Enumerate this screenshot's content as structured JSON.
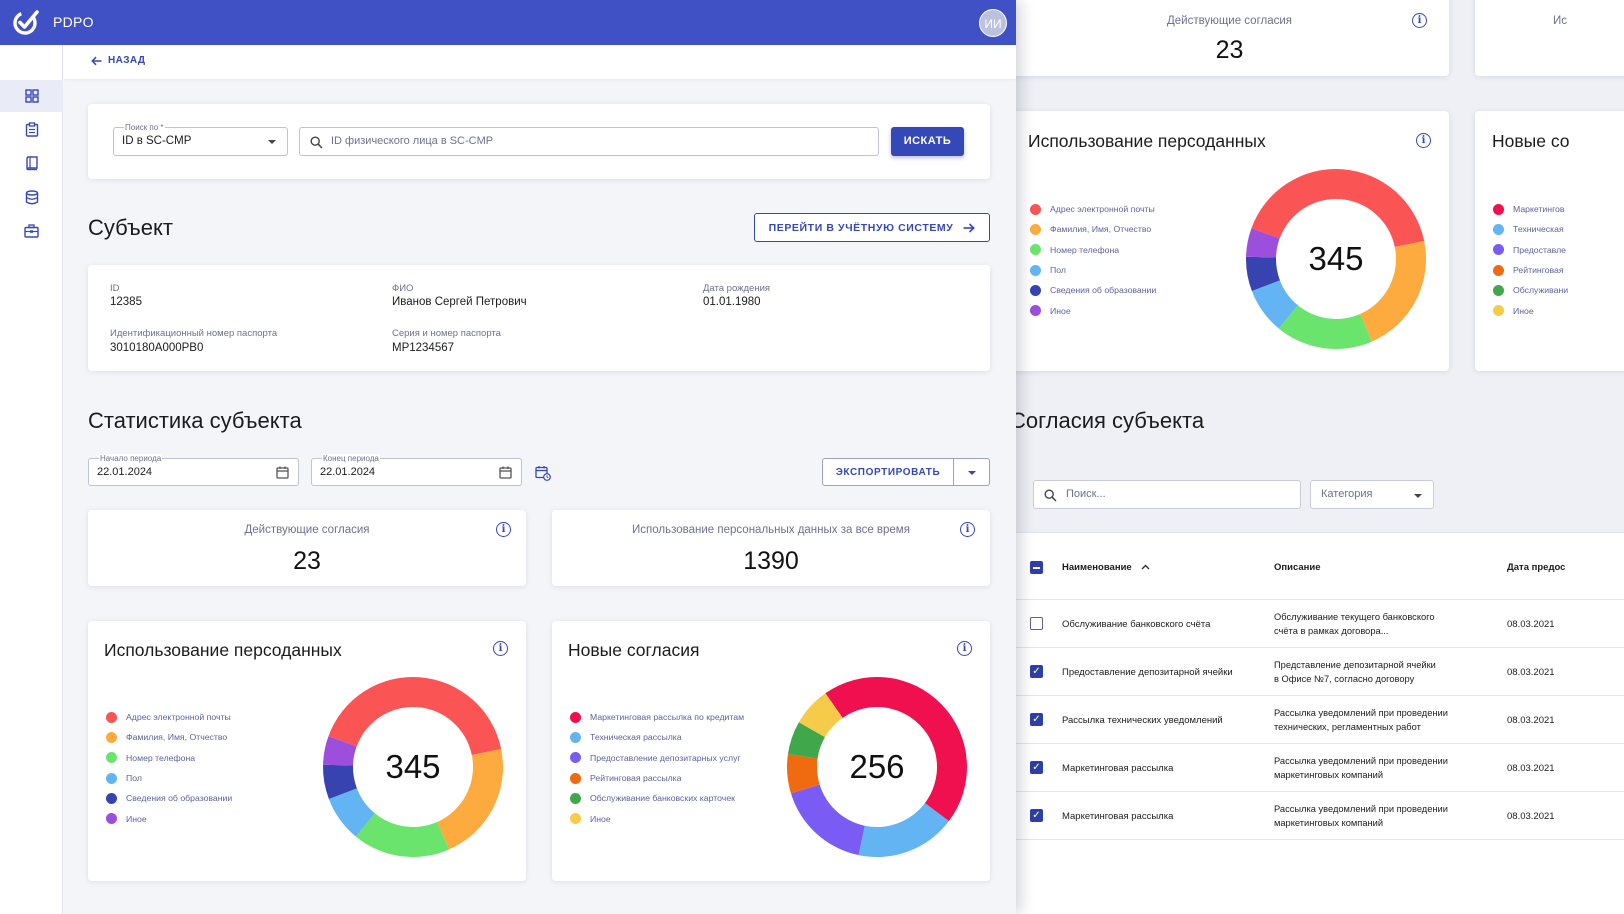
{
  "app": {
    "title": "PDPO",
    "avatar_initials": "ИИ"
  },
  "nav": {
    "back_label": "НАЗАД"
  },
  "sidebar": {
    "items": [
      "dashboard-icon",
      "clipboard-icon",
      "book-icon",
      "database-icon",
      "briefcase-icon"
    ]
  },
  "search": {
    "by_label": "Поиск по *",
    "by_value": "ID в SC-CMP",
    "placeholder": "ID физического лица в SC-CMP",
    "button": "ИСКАТЬ"
  },
  "subject": {
    "title": "Субъект",
    "goto_button": "ПЕРЕЙТИ В УЧЁТНУЮ СИСТЕМУ",
    "fields": {
      "id_label": "ID",
      "id_value": "12385",
      "fio_label": "ФИО",
      "fio_value": "Иванов Сергей Петрович",
      "dob_label": "Дата рождения",
      "dob_value": "01.01.1980",
      "passport_id_label": "Идентификационный номер паспорта",
      "passport_id_value": "3010180A000PB0",
      "passport_series_label": "Серия и номер паспорта",
      "passport_series_value": "MP1234567"
    }
  },
  "stats": {
    "title": "Статистика субъекта",
    "period_start_label": "Начало периода",
    "period_start_value": "22.01.2024",
    "period_end_label": "Конец периода",
    "period_end_value": "22.01.2024",
    "export_button": "ЭКСПОРТИРОВАТЬ",
    "active_consents_label": "Действующие согласия",
    "active_consents_value": "23",
    "usage_all_time_label": "Использование персональных данных за все время",
    "usage_all_time_value": "1390"
  },
  "chart_data": [
    {
      "type": "pie",
      "title": "Использование персоданных",
      "total": "345",
      "categories": [
        "Адрес электронной почты",
        "Фамилия, Имя, Отчество",
        "Номер телефона",
        "Пол",
        "Сведения об образовании",
        "Иное"
      ],
      "values": [
        40,
        21,
        17,
        8,
        6,
        5
      ],
      "colors": [
        "#fb5454",
        "#fdab3f",
        "#6ae46c",
        "#62b4f2",
        "#3744b0",
        "#9b4fdc"
      ]
    },
    {
      "type": "pie",
      "title": "Новые согласия",
      "total": "256",
      "categories": [
        "Маркетинговая рассылка по кредитам",
        "Техническая рассылка",
        "Предоставление депозитарных услуг",
        "Рейтинговая рассылка",
        "Обслуживание банковских карточек",
        "Иное"
      ],
      "values": [
        45,
        18,
        17,
        7,
        6,
        7
      ],
      "colors": [
        "#f0104f",
        "#62b4f2",
        "#7a5cf4",
        "#f06a10",
        "#40a84a",
        "#f7cb4a"
      ]
    }
  ],
  "consents": {
    "title": "Согласия субъекта",
    "search_placeholder": "Поиск...",
    "category_placeholder": "Категория",
    "columns": {
      "name": "Наименование",
      "description": "Описание",
      "date": "Дата предос"
    },
    "rows": [
      {
        "name": "Обслуживание банковского счёта",
        "desc1": "Обслуживание текущего банковского",
        "desc2": "счёта в рамках договора...",
        "date": "08.03.2021",
        "checked": false
      },
      {
        "name": "Предоставление депозитарной ячейки",
        "desc1": "Представление депозитарной ячейки",
        "desc2": "в Офисе №7, согласно договору",
        "date": "08.03.2021",
        "checked": true
      },
      {
        "name": "Рассылка технических уведомлений",
        "desc1": "Рассылка уведомлений при проведении",
        "desc2": "технических, регламентных работ",
        "date": "08.03.2021",
        "checked": true
      },
      {
        "name": "Маркетинговая рассылка",
        "desc1": "Рассылка уведомлений при проведении",
        "desc2": "маркетинговых компаний",
        "date": "08.03.2021",
        "checked": true
      },
      {
        "name": "Маркетинговая рассылка",
        "desc1": "Рассылка уведомлений при проведении",
        "desc2": "маркетинговых компаний",
        "date": "08.03.2021",
        "checked": true
      }
    ],
    "partial": {
      "right_card_title": "Новые со",
      "right_stat_label": "Ис",
      "legend": [
        "Маркетингов",
        "Техническая",
        "Предоставле",
        "Рейтинговая",
        "Обслуживани",
        "Иное"
      ]
    }
  }
}
